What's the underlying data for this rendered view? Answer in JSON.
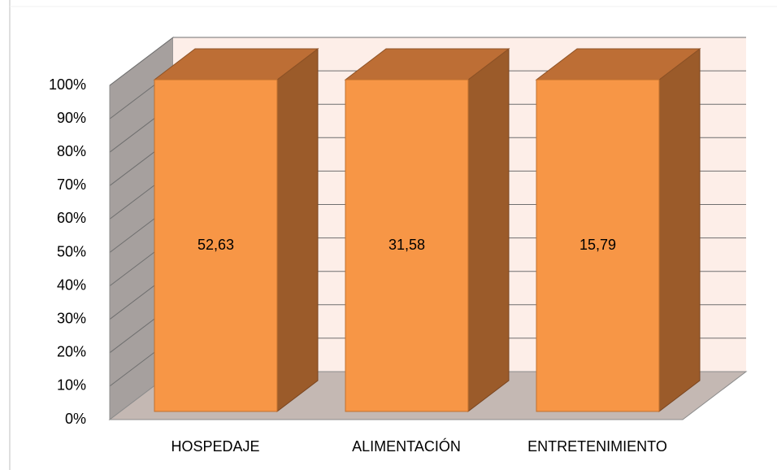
{
  "chart_data": {
    "type": "bar",
    "mode": "percent_stacked",
    "categories": [
      "HOSPEDAJE",
      "ALIMENTACIÓN",
      "ENTRETENIMIENTO"
    ],
    "values": [
      52.63,
      31.58,
      15.79
    ],
    "value_labels": [
      "52,63",
      "31,58",
      "15,79"
    ],
    "color": "#f79646",
    "ylim": [
      0,
      100
    ],
    "yticks": [
      {
        "value": 0,
        "label": "0%"
      },
      {
        "value": 10,
        "label": "10%"
      },
      {
        "value": 20,
        "label": "20%"
      },
      {
        "value": 30,
        "label": "30%"
      },
      {
        "value": 40,
        "label": "40%"
      },
      {
        "value": 50,
        "label": "50%"
      },
      {
        "value": 60,
        "label": "60%"
      },
      {
        "value": 70,
        "label": "70%"
      },
      {
        "value": 80,
        "label": "80%"
      },
      {
        "value": 90,
        "label": "90%"
      },
      {
        "value": 100,
        "label": "100%"
      }
    ],
    "grid": true
  }
}
